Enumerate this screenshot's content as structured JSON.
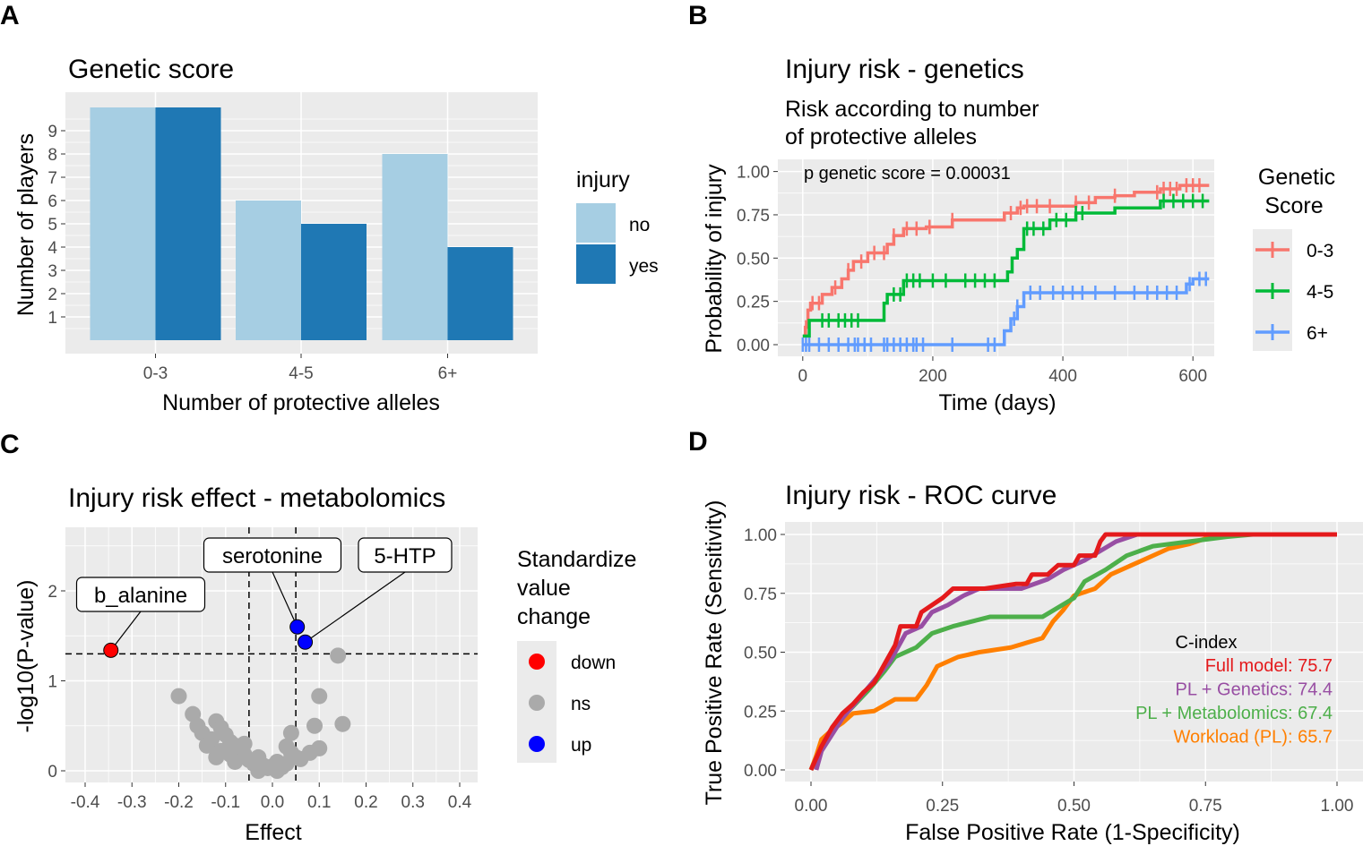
{
  "colors": {
    "panel_bg": "#ebebeb",
    "grid": "#ffffff",
    "bar_no": "#a6cee3",
    "bar_yes": "#1f78b4",
    "km_03": "#f8766d",
    "km_45": "#00ba38",
    "km_6p": "#619cff",
    "roc_full": "#e41a1c",
    "roc_genetics": "#984ea3",
    "roc_metab": "#4daf4a",
    "roc_workload": "#ff7f00",
    "pt_down": "#ff0000",
    "pt_ns": "#aaaaaa",
    "pt_up": "#0000ff"
  },
  "panels": {
    "A": {
      "tag": "A"
    },
    "B": {
      "tag": "B"
    },
    "C": {
      "tag": "C"
    },
    "D": {
      "tag": "D"
    }
  },
  "chart_data": [
    {
      "panel": "A",
      "type": "bar",
      "title": "Genetic score",
      "xlabel": "Number of protective alleles",
      "ylabel": "Number of players",
      "categories": [
        "0-3",
        "4-5",
        "6+"
      ],
      "series": [
        {
          "name": "no",
          "values": [
            10,
            6,
            8
          ]
        },
        {
          "name": "yes",
          "values": [
            10,
            5,
            4
          ]
        }
      ],
      "ylim": [
        0,
        10
      ],
      "yticks": [
        1,
        2,
        3,
        4,
        5,
        6,
        7,
        8,
        9
      ],
      "legend": {
        "title": "injury",
        "position": "right"
      },
      "grid": true
    },
    {
      "panel": "B",
      "type": "line",
      "title": "Injury risk - genetics",
      "subtitle_lines": [
        "Risk according to number",
        "of protective alleles"
      ],
      "xlabel": "Time (days)",
      "ylabel": "Probability of injury",
      "annotation": "p genetic score = 0.00031",
      "xlim": [
        -15,
        625
      ],
      "ylim": [
        0,
        1
      ],
      "xticks": [
        0,
        200,
        400,
        600
      ],
      "yticks": [
        "0.00",
        "0.25",
        "0.50",
        "0.75",
        "1.00"
      ],
      "legend": {
        "title_lines": [
          "Genetic",
          "Score"
        ],
        "position": "right"
      },
      "series": [
        {
          "name": "0-3",
          "steps": [
            [
              0,
              0.05
            ],
            [
              4,
              0.1
            ],
            [
              8,
              0.2
            ],
            [
              12,
              0.24
            ],
            [
              30,
              0.29
            ],
            [
              45,
              0.33
            ],
            [
              60,
              0.38
            ],
            [
              70,
              0.43
            ],
            [
              78,
              0.48
            ],
            [
              100,
              0.53
            ],
            [
              130,
              0.58
            ],
            [
              140,
              0.63
            ],
            [
              155,
              0.67
            ],
            [
              190,
              0.68
            ],
            [
              230,
              0.72
            ],
            [
              310,
              0.76
            ],
            [
              330,
              0.79
            ],
            [
              340,
              0.8
            ],
            [
              420,
              0.82
            ],
            [
              450,
              0.85
            ],
            [
              480,
              0.86
            ],
            [
              510,
              0.88
            ],
            [
              550,
              0.9
            ],
            [
              580,
              0.92
            ],
            [
              625,
              0.92
            ]
          ],
          "censor": [
            5,
            15,
            25,
            50,
            70,
            90,
            110,
            125,
            140,
            160,
            175,
            195,
            230,
            320,
            335,
            345,
            360,
            380,
            420,
            440,
            480,
            545,
            555,
            565,
            575,
            590,
            600,
            610
          ]
        },
        {
          "name": "4-5",
          "steps": [
            [
              0,
              0.05
            ],
            [
              10,
              0.14
            ],
            [
              125,
              0.24
            ],
            [
              130,
              0.29
            ],
            [
              155,
              0.37
            ],
            [
              315,
              0.42
            ],
            [
              322,
              0.5
            ],
            [
              330,
              0.55
            ],
            [
              340,
              0.67
            ],
            [
              380,
              0.72
            ],
            [
              420,
              0.76
            ],
            [
              480,
              0.79
            ],
            [
              550,
              0.83
            ],
            [
              625,
              0.83
            ]
          ],
          "censor": [
            30,
            40,
            55,
            65,
            75,
            85,
            140,
            150,
            160,
            170,
            180,
            200,
            220,
            250,
            265,
            280,
            295,
            345,
            355,
            370,
            390,
            405,
            420,
            430,
            555,
            570,
            585,
            600,
            615
          ]
        },
        {
          "name": "6+",
          "steps": [
            [
              0,
              0
            ],
            [
              310,
              0.08
            ],
            [
              320,
              0.15
            ],
            [
              330,
              0.22
            ],
            [
              340,
              0.3
            ],
            [
              590,
              0.35
            ],
            [
              600,
              0.38
            ],
            [
              625,
              0.38
            ]
          ],
          "censor": [
            0,
            5,
            10,
            25,
            40,
            55,
            70,
            80,
            85,
            95,
            105,
            125,
            130,
            140,
            150,
            160,
            170,
            175,
            185,
            230,
            285,
            295,
            325,
            330,
            350,
            365,
            385,
            400,
            415,
            430,
            450,
            480,
            510,
            530,
            545,
            560,
            575,
            595,
            610,
            620
          ]
        }
      ]
    },
    {
      "panel": "C",
      "type": "scatter",
      "title": "Injury risk effect - metabolomics",
      "xlabel": "Effect",
      "ylabel": "-log10(P-value)",
      "xlim": [
        -0.44,
        0.44
      ],
      "ylim": [
        -0.05,
        2.67
      ],
      "xticks": [
        "-0.4",
        "-0.3",
        "-0.2",
        "-0.1",
        "0.0",
        "0.1",
        "0.2",
        "0.3",
        "0.4"
      ],
      "xtick_values": [
        -0.4,
        -0.3,
        -0.2,
        -0.1,
        0.0,
        0.1,
        0.2,
        0.3,
        0.4
      ],
      "yticks": [
        0,
        1,
        2
      ],
      "threshold_x": [
        -0.05,
        0.05
      ],
      "threshold_y": 1.3,
      "legend": {
        "title_lines": [
          "Standardize",
          "value",
          "change"
        ],
        "entries": [
          "down",
          "ns",
          "up"
        ],
        "position": "right"
      },
      "points": [
        {
          "x": -0.345,
          "y": 1.34,
          "cls": "down",
          "label": "b_alanine"
        },
        {
          "x": 0.053,
          "y": 1.6,
          "cls": "up",
          "label": "serotonine"
        },
        {
          "x": 0.07,
          "y": 1.43,
          "cls": "up",
          "label": "5-HTP"
        },
        {
          "x": 0.14,
          "y": 1.28,
          "cls": "ns"
        },
        {
          "x": -0.2,
          "y": 0.83,
          "cls": "ns"
        },
        {
          "x": -0.17,
          "y": 0.63,
          "cls": "ns"
        },
        {
          "x": -0.16,
          "y": 0.5,
          "cls": "ns"
        },
        {
          "x": -0.15,
          "y": 0.42,
          "cls": "ns"
        },
        {
          "x": -0.12,
          "y": 0.55,
          "cls": "ns"
        },
        {
          "x": -0.11,
          "y": 0.48,
          "cls": "ns"
        },
        {
          "x": -0.1,
          "y": 0.4,
          "cls": "ns"
        },
        {
          "x": -0.13,
          "y": 0.35,
          "cls": "ns"
        },
        {
          "x": -0.09,
          "y": 0.32,
          "cls": "ns"
        },
        {
          "x": -0.08,
          "y": 0.28,
          "cls": "ns"
        },
        {
          "x": -0.07,
          "y": 0.22,
          "cls": "ns"
        },
        {
          "x": -0.06,
          "y": 0.18,
          "cls": "ns"
        },
        {
          "x": -0.05,
          "y": 0.12,
          "cls": "ns"
        },
        {
          "x": -0.04,
          "y": 0.08,
          "cls": "ns"
        },
        {
          "x": -0.03,
          "y": 0.15,
          "cls": "ns"
        },
        {
          "x": -0.02,
          "y": 0.06,
          "cls": "ns"
        },
        {
          "x": -0.01,
          "y": 0.03,
          "cls": "ns"
        },
        {
          "x": 0.0,
          "y": 0.05,
          "cls": "ns"
        },
        {
          "x": 0.01,
          "y": 0.1,
          "cls": "ns"
        },
        {
          "x": 0.02,
          "y": 0.04,
          "cls": "ns"
        },
        {
          "x": 0.03,
          "y": 0.08,
          "cls": "ns"
        },
        {
          "x": 0.04,
          "y": 0.2,
          "cls": "ns"
        },
        {
          "x": 0.03,
          "y": 0.27,
          "cls": "ns"
        },
        {
          "x": 0.05,
          "y": 0.15,
          "cls": "ns"
        },
        {
          "x": 0.06,
          "y": 0.13,
          "cls": "ns"
        },
        {
          "x": 0.08,
          "y": 0.2,
          "cls": "ns"
        },
        {
          "x": 0.1,
          "y": 0.25,
          "cls": "ns"
        },
        {
          "x": 0.09,
          "y": 0.5,
          "cls": "ns"
        },
        {
          "x": 0.04,
          "y": 0.42,
          "cls": "ns"
        },
        {
          "x": 0.1,
          "y": 0.83,
          "cls": "ns"
        },
        {
          "x": 0.15,
          "y": 0.52,
          "cls": "ns"
        },
        {
          "x": -0.14,
          "y": 0.28,
          "cls": "ns"
        },
        {
          "x": -0.11,
          "y": 0.22,
          "cls": "ns"
        },
        {
          "x": -0.09,
          "y": 0.18,
          "cls": "ns"
        },
        {
          "x": -0.12,
          "y": 0.15,
          "cls": "ns"
        },
        {
          "x": -0.06,
          "y": 0.3,
          "cls": "ns"
        },
        {
          "x": -0.08,
          "y": 0.1,
          "cls": "ns"
        },
        {
          "x": 0.01,
          "y": 0.0,
          "cls": "ns"
        },
        {
          "x": -0.03,
          "y": 0.0,
          "cls": "ns"
        }
      ]
    },
    {
      "panel": "D",
      "type": "line",
      "title": "Injury risk - ROC curve",
      "xlabel": "False Positive Rate (1-Specificity)",
      "ylabel": "True Positive Rate (Sensitivity)",
      "xlim": [
        -0.05,
        1.05
      ],
      "ylim": [
        -0.05,
        1.05
      ],
      "xticks": [
        "0.00",
        "0.25",
        "0.50",
        "0.75",
        "1.00"
      ],
      "yticks": [
        "0.00",
        "0.25",
        "0.50",
        "0.75",
        "1.00"
      ],
      "legend": {
        "title": "C-index",
        "position": "inside-bottom-right"
      },
      "series": [
        {
          "name": "Full model:",
          "score": "75.7",
          "points": [
            [
              0,
              0
            ],
            [
              0.02,
              0.1
            ],
            [
              0.04,
              0.18
            ],
            [
              0.06,
              0.24
            ],
            [
              0.08,
              0.28
            ],
            [
              0.1,
              0.33
            ],
            [
              0.12,
              0.37
            ],
            [
              0.14,
              0.45
            ],
            [
              0.16,
              0.53
            ],
            [
              0.17,
              0.61
            ],
            [
              0.2,
              0.61
            ],
            [
              0.21,
              0.67
            ],
            [
              0.25,
              0.73
            ],
            [
              0.27,
              0.77
            ],
            [
              0.33,
              0.77
            ],
            [
              0.39,
              0.79
            ],
            [
              0.41,
              0.79
            ],
            [
              0.42,
              0.83
            ],
            [
              0.45,
              0.83
            ],
            [
              0.47,
              0.87
            ],
            [
              0.5,
              0.87
            ],
            [
              0.51,
              0.91
            ],
            [
              0.54,
              0.91
            ],
            [
              0.55,
              0.97
            ],
            [
              0.56,
              1.0
            ],
            [
              1.0,
              1.0
            ]
          ]
        },
        {
          "name": "PL + Genetics:",
          "score": "74.4",
          "points": [
            [
              0.01,
              0
            ],
            [
              0.02,
              0.08
            ],
            [
              0.04,
              0.15
            ],
            [
              0.06,
              0.22
            ],
            [
              0.09,
              0.3
            ],
            [
              0.12,
              0.38
            ],
            [
              0.15,
              0.46
            ],
            [
              0.17,
              0.54
            ],
            [
              0.18,
              0.58
            ],
            [
              0.21,
              0.61
            ],
            [
              0.23,
              0.67
            ],
            [
              0.26,
              0.7
            ],
            [
              0.29,
              0.74
            ],
            [
              0.32,
              0.77
            ],
            [
              0.4,
              0.77
            ],
            [
              0.45,
              0.81
            ],
            [
              0.48,
              0.85
            ],
            [
              0.52,
              0.89
            ],
            [
              0.55,
              0.93
            ],
            [
              0.58,
              0.97
            ],
            [
              0.62,
              1.0
            ],
            [
              1.0,
              1.0
            ]
          ]
        },
        {
          "name": "PL + Metabolomics:",
          "score": "67.4",
          "points": [
            [
              0,
              0
            ],
            [
              0.01,
              0.05
            ],
            [
              0.03,
              0.12
            ],
            [
              0.05,
              0.2
            ],
            [
              0.08,
              0.27
            ],
            [
              0.11,
              0.34
            ],
            [
              0.14,
              0.42
            ],
            [
              0.16,
              0.48
            ],
            [
              0.2,
              0.52
            ],
            [
              0.23,
              0.58
            ],
            [
              0.27,
              0.61
            ],
            [
              0.34,
              0.65
            ],
            [
              0.44,
              0.65
            ],
            [
              0.5,
              0.73
            ],
            [
              0.52,
              0.8
            ],
            [
              0.56,
              0.85
            ],
            [
              0.6,
              0.91
            ],
            [
              0.65,
              0.95
            ],
            [
              0.72,
              0.97
            ],
            [
              0.79,
              0.99
            ],
            [
              0.84,
              1.0
            ],
            [
              1.0,
              1.0
            ]
          ]
        },
        {
          "name": "Workload (PL):",
          "score": "65.7",
          "points": [
            [
              0,
              0
            ],
            [
              0.01,
              0.06
            ],
            [
              0.02,
              0.13
            ],
            [
              0.04,
              0.17
            ],
            [
              0.06,
              0.2
            ],
            [
              0.08,
              0.24
            ],
            [
              0.12,
              0.25
            ],
            [
              0.16,
              0.3
            ],
            [
              0.2,
              0.3
            ],
            [
              0.22,
              0.36
            ],
            [
              0.24,
              0.44
            ],
            [
              0.28,
              0.48
            ],
            [
              0.32,
              0.5
            ],
            [
              0.38,
              0.52
            ],
            [
              0.44,
              0.56
            ],
            [
              0.46,
              0.63
            ],
            [
              0.48,
              0.68
            ],
            [
              0.5,
              0.74
            ],
            [
              0.54,
              0.77
            ],
            [
              0.57,
              0.83
            ],
            [
              0.62,
              0.88
            ],
            [
              0.68,
              0.94
            ],
            [
              0.72,
              0.96
            ],
            [
              0.76,
              0.99
            ],
            [
              0.8,
              1.0
            ],
            [
              1.0,
              1.0
            ]
          ]
        }
      ]
    }
  ]
}
